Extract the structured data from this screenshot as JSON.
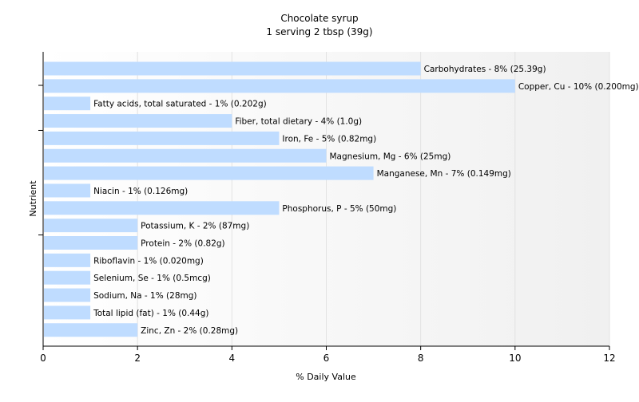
{
  "chart_data": {
    "type": "bar",
    "orientation": "horizontal",
    "title": "Chocolate syrup",
    "subtitle": "1 serving 2 tbsp (39g)",
    "xlabel": "% Daily Value",
    "ylabel": "Nutrient",
    "xlim": [
      0,
      12
    ],
    "xticks": [
      0,
      2,
      4,
      6,
      8,
      10,
      12
    ],
    "grid": true,
    "bar_color": "#bfdcff",
    "categories": [
      "Carbohydrates",
      "Copper, Cu",
      "Fatty acids, total saturated",
      "Fiber, total dietary",
      "Iron, Fe",
      "Magnesium, Mg",
      "Manganese, Mn",
      "Niacin",
      "Phosphorus, P",
      "Potassium, K",
      "Protein",
      "Riboflavin",
      "Selenium, Se",
      "Sodium, Na",
      "Total lipid (fat)",
      "Zinc, Zn"
    ],
    "values": [
      8,
      10,
      1,
      4,
      5,
      6,
      7,
      1,
      5,
      2,
      2,
      1,
      1,
      1,
      1,
      2
    ],
    "labels": [
      "Carbohydrates - 8% (25.39g)",
      "Copper, Cu - 10% (0.200mg)",
      "Fatty acids, total saturated - 1% (0.202g)",
      "Fiber, total dietary - 4% (1.0g)",
      "Iron, Fe - 5% (0.82mg)",
      "Magnesium, Mg - 6% (25mg)",
      "Manganese, Mn - 7% (0.149mg)",
      "Niacin - 1% (0.126mg)",
      "Phosphorus, P - 5% (50mg)",
      "Potassium, K - 2% (87mg)",
      "Protein - 2% (0.82g)",
      "Riboflavin - 1% (0.020mg)",
      "Selenium, Se - 1% (0.5mcg)",
      "Sodium, Na - 1% (28mg)",
      "Total lipid (fat) - 1% (0.44g)",
      "Zinc, Zn - 2% (0.28mg)"
    ]
  }
}
